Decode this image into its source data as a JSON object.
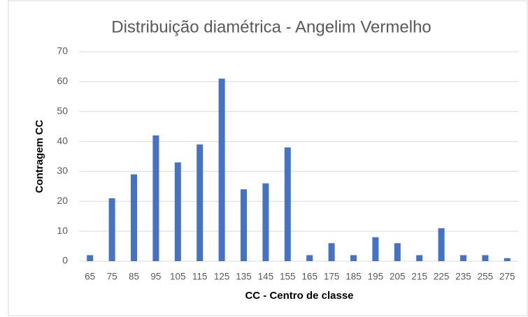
{
  "chart_data": {
    "type": "bar",
    "title": "Distribuição diamétrica - Angelim Vermelho",
    "xlabel": "CC - Centro de classe",
    "ylabel": "Contragem CC",
    "categories": [
      65,
      75,
      85,
      95,
      105,
      115,
      125,
      135,
      145,
      155,
      165,
      175,
      185,
      195,
      205,
      215,
      225,
      235,
      255,
      275
    ],
    "values": [
      2,
      21,
      29,
      42,
      33,
      39,
      61,
      24,
      26,
      38,
      2,
      6,
      2,
      8,
      6,
      2,
      11,
      2,
      2,
      1
    ],
    "color": "#4472c4",
    "ylim": [
      0,
      70
    ],
    "yticks": [
      0,
      10,
      20,
      30,
      40,
      50,
      60,
      70
    ],
    "grid": true
  }
}
